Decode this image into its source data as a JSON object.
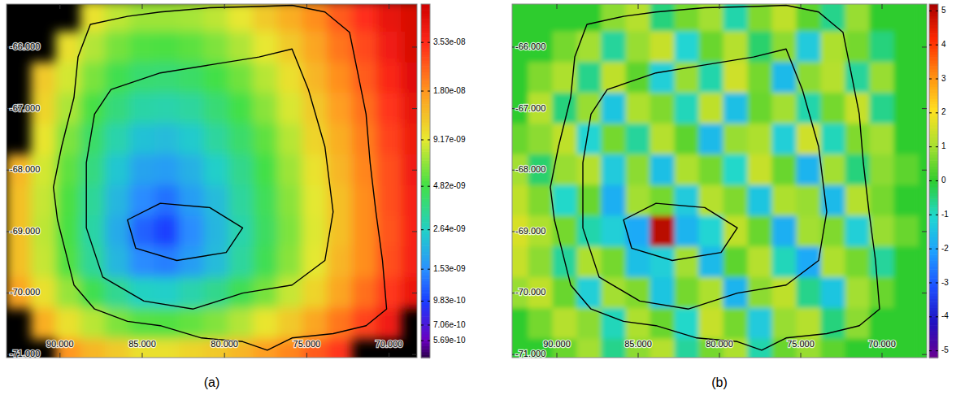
{
  "chart_data": [
    {
      "type": "heatmap",
      "title": "(a)",
      "x": [
        92.5,
        91,
        89.5,
        88,
        86.5,
        85,
        83.5,
        82,
        80.5,
        79,
        77.5,
        76,
        74.5,
        73,
        71.5,
        70,
        68.5
      ],
      "y": [
        -65.5,
        -66,
        -66.5,
        -67,
        -67.5,
        -68,
        -68.5,
        -69,
        -69.5,
        -70,
        -70.5,
        -71
      ],
      "values": [
        [
          null,
          null,
          null,
          9.8e-09,
          7.9e-09,
          7e-09,
          7e-09,
          7.2e-09,
          7.9e-09,
          9.4e-09,
          1.2e-08,
          1.5e-08,
          1.9e-08,
          2.6e-08,
          3.4e-08,
          4.6e-08,
          5.5e-08
        ],
        [
          null,
          null,
          1e-08,
          7.6e-09,
          6e-09,
          5.2e-09,
          5.1e-09,
          5.4e-09,
          6.2e-09,
          7.5e-09,
          9.4e-09,
          1.2e-08,
          1.6e-08,
          2.2e-08,
          2.9e-08,
          4.1e-08,
          5.5e-08
        ],
        [
          null,
          1.2e-08,
          8.6e-09,
          6.1e-09,
          4.7e-09,
          4e-09,
          3.9e-09,
          4.2e-09,
          4.9e-09,
          5.9e-09,
          7.7e-09,
          1e-08,
          1.4e-08,
          1.9e-08,
          2.6e-08,
          3.7e-08,
          5e-08
        ],
        [
          null,
          1.1e-08,
          7.4e-09,
          5e-09,
          3.8e-09,
          3.1e-09,
          3e-09,
          3.2e-09,
          3.9e-09,
          4.9e-09,
          6.5e-09,
          8.8e-09,
          1.2e-08,
          1.7e-08,
          2.3e-08,
          3.3e-08,
          4.6e-08
        ],
        [
          null,
          9.6e-09,
          6.2e-09,
          4.2e-09,
          3e-09,
          2.3e-09,
          2.2e-09,
          2.5e-09,
          3.2e-09,
          4.1e-09,
          5.5e-09,
          7.7e-09,
          1.1e-08,
          1.5e-08,
          2.1e-08,
          3e-08,
          4.2e-08
        ],
        [
          1.4e-08,
          8.6e-09,
          5.5e-09,
          3.7e-09,
          2.4e-09,
          1.8e-09,
          1.7e-09,
          2e-09,
          2.6e-09,
          3.5e-09,
          4.9e-09,
          7e-09,
          9.8e-09,
          1.4e-08,
          2e-08,
          2.8e-08,
          4.1e-08
        ],
        [
          1.3e-08,
          8.2e-09,
          5.1e-09,
          3.3e-09,
          2.1e-09,
          1.5e-09,
          1.3e-09,
          1.7e-09,
          2.2e-09,
          3.2e-09,
          4.5e-09,
          6.5e-09,
          9.2e-09,
          1.3e-08,
          1.9e-08,
          2.8e-08,
          3.9e-08
        ],
        [
          1.3e-08,
          7.9e-09,
          5e-09,
          3.1e-09,
          1.9e-09,
          1.2e-09,
          1e-09,
          1.5e-09,
          2.1e-09,
          3e-09,
          4.3e-09,
          6.2e-09,
          9e-09,
          1.3e-08,
          1.9e-08,
          2.7e-08,
          3.8e-08
        ],
        [
          1.3e-08,
          8.2e-09,
          5.2e-09,
          3.3e-09,
          2.1e-09,
          1.5e-09,
          1.4e-09,
          1.7e-09,
          2.2e-09,
          3.2e-09,
          4.6e-09,
          6.5e-09,
          9.2e-09,
          1.4e-08,
          1.9e-08,
          2.8e-08,
          3.9e-08
        ],
        [
          1.6e-08,
          1e-08,
          6.8e-09,
          4.7e-09,
          3.4e-09,
          2.7e-09,
          2.6e-09,
          3e-09,
          3.5e-09,
          4.6e-09,
          6e-09,
          8.2e-09,
          1.1e-08,
          1.6e-08,
          2.3e-08,
          3.2e-08,
          4.4e-08
        ],
        [
          null,
          1.5e-08,
          1e-08,
          7.8e-09,
          6.2e-09,
          5.3e-09,
          5.2e-09,
          5.6e-09,
          6.3e-09,
          7.6e-09,
          9.6e-09,
          1.2e-08,
          1.6e-08,
          2.2e-08,
          3e-08,
          4.1e-08,
          null
        ],
        [
          null,
          null,
          1.8e-08,
          1.4e-08,
          1.2e-08,
          1e-08,
          1e-08,
          1.1e-08,
          1.2e-08,
          1.4e-08,
          1.7e-08,
          2e-08,
          2.6e-08,
          3.3e-08,
          null,
          null,
          null
        ]
      ],
      "xlim": [
        93.25,
        68.3
      ],
      "ylim": [
        -71.05,
        -65.3
      ],
      "xticks": [
        {
          "value": 90,
          "label": "90.000"
        },
        {
          "value": 85,
          "label": "85.000"
        },
        {
          "value": 80,
          "label": "80.000"
        },
        {
          "value": 75,
          "label": "75.000"
        },
        {
          "value": 70,
          "label": "70.000"
        }
      ],
      "yticks": [
        {
          "value": -66,
          "label": "-66.000"
        },
        {
          "value": -67,
          "label": "-67.000"
        },
        {
          "value": -68,
          "label": "-68.000"
        },
        {
          "value": -69,
          "label": "-69.000"
        },
        {
          "value": -70,
          "label": "-70.000"
        },
        {
          "value": -71,
          "label": "-71.000"
        }
      ],
      "colorbar": {
        "range": [
          4.5e-10,
          6e-08
        ],
        "log": true,
        "ticks": [
          {
            "value": 3.53e-08,
            "label": "3.53e-08"
          },
          {
            "value": 1.8e-08,
            "label": "1.80e-08"
          },
          {
            "value": 9.17e-09,
            "label": "9.17e-09"
          },
          {
            "value": 4.82e-09,
            "label": "4.82e-09"
          },
          {
            "value": 2.64e-09,
            "label": "2.64e-09"
          },
          {
            "value": 1.53e-09,
            "label": "1.53e-09"
          },
          {
            "value": 9.83e-10,
            "label": "9.83e-10"
          },
          {
            "value": 7.06e-10,
            "label": "7.06e-10"
          },
          {
            "value": 5.69e-10,
            "label": "5.69e-10"
          }
        ]
      },
      "contours": [
        [
          [
            88.15,
            -65.63
          ],
          [
            85.9,
            -65.5
          ],
          [
            83.9,
            -65.43
          ],
          [
            80.9,
            -65.36
          ],
          [
            77.9,
            -65.34
          ],
          [
            75.9,
            -65.32
          ],
          [
            73.9,
            -65.43
          ],
          [
            72.4,
            -65.76
          ],
          [
            71.9,
            -66.42
          ],
          [
            71.4,
            -67.09
          ],
          [
            71.15,
            -67.88
          ],
          [
            70.8,
            -68.68
          ],
          [
            70.4,
            -69.47
          ],
          [
            70.15,
            -70.26
          ],
          [
            71.4,
            -70.53
          ],
          [
            73.4,
            -70.66
          ],
          [
            75.9,
            -70.73
          ],
          [
            77.4,
            -70.93
          ],
          [
            78.9,
            -70.79
          ],
          [
            81.4,
            -70.73
          ],
          [
            83.9,
            -70.53
          ],
          [
            85.9,
            -70.46
          ],
          [
            87.9,
            -70.26
          ],
          [
            89.15,
            -69.87
          ],
          [
            89.65,
            -69.34
          ],
          [
            90.15,
            -68.81
          ],
          [
            90.4,
            -68.28
          ],
          [
            89.9,
            -67.62
          ],
          [
            89.15,
            -66.82
          ],
          [
            88.9,
            -66.16
          ]
        ],
        [
          [
            86.9,
            -66.69
          ],
          [
            83.9,
            -66.42
          ],
          [
            80.9,
            -66.29
          ],
          [
            77.9,
            -66.16
          ],
          [
            75.9,
            -66.03
          ],
          [
            74.9,
            -66.69
          ],
          [
            73.9,
            -67.62
          ],
          [
            73.4,
            -68.68
          ],
          [
            73.9,
            -69.47
          ],
          [
            75.9,
            -69.87
          ],
          [
            78.9,
            -70.0
          ],
          [
            81.9,
            -70.26
          ],
          [
            84.9,
            -70.13
          ],
          [
            87.4,
            -69.74
          ],
          [
            88.4,
            -68.94
          ],
          [
            88.4,
            -67.88
          ],
          [
            87.9,
            -67.09
          ]
        ],
        [
          [
            85.9,
            -68.81
          ],
          [
            83.9,
            -68.54
          ],
          [
            80.9,
            -68.61
          ],
          [
            78.9,
            -68.94
          ],
          [
            79.9,
            -69.34
          ],
          [
            82.9,
            -69.47
          ],
          [
            85.4,
            -69.27
          ]
        ]
      ]
    },
    {
      "type": "heatmap",
      "title": "(b)",
      "x": [
        92.5,
        91,
        89.5,
        88,
        86.5,
        85,
        83.5,
        82,
        80.5,
        79,
        77.5,
        76,
        74.5,
        73,
        71.5,
        70,
        68.5
      ],
      "y": [
        -65.5,
        -66,
        -66.5,
        -67,
        -67.5,
        -68,
        -68.5,
        -69,
        -69.5,
        -70,
        -70.5,
        -71
      ],
      "values": [
        [
          0,
          0,
          0,
          0,
          0.8,
          1.2,
          -0.5,
          0.6,
          1.0,
          -0.8,
          0.7,
          1.3,
          0.4,
          -0.6,
          0.9,
          0,
          0
        ],
        [
          0,
          0,
          0.6,
          1.0,
          -0.7,
          0.9,
          1.4,
          -1.1,
          0.5,
          1.2,
          -0.4,
          0.8,
          -1.3,
          1.1,
          0.6,
          -0.5,
          0
        ],
        [
          0,
          0.7,
          1.1,
          -0.6,
          1.3,
          0.4,
          -1.2,
          0.9,
          -0.8,
          1.5,
          0.6,
          -1.6,
          0.8,
          1.2,
          -0.7,
          0.9,
          0
        ],
        [
          0,
          1.2,
          -0.5,
          0.9,
          -1.4,
          1.1,
          0.7,
          -0.9,
          1.3,
          -1.5,
          0.5,
          1.0,
          -0.8,
          0.6,
          1.4,
          -0.6,
          0
        ],
        [
          0.5,
          0.8,
          1.3,
          -1.1,
          0.6,
          -0.7,
          1.2,
          0.4,
          -1.6,
          0.9,
          1.1,
          -1.2,
          1.5,
          -0.9,
          0.7,
          1.0,
          0
        ],
        [
          1.0,
          -0.4,
          0.9,
          1.2,
          -1.3,
          0.8,
          -1.5,
          1.1,
          0.6,
          -1.0,
          1.4,
          0.5,
          -1.7,
          1.0,
          -0.5,
          0.8,
          0.4
        ],
        [
          1.3,
          0.7,
          -1.0,
          0.5,
          -1.8,
          1.0,
          0.6,
          -1.3,
          1.2,
          0.7,
          -1.4,
          1.1,
          0.9,
          -1.6,
          1.2,
          0.6,
          0
        ],
        [
          1.6,
          1.1,
          0.6,
          -0.8,
          -1.2,
          -1.9,
          5,
          -1.7,
          -1.1,
          1.3,
          0.5,
          -1.8,
          1.0,
          0.7,
          -1.2,
          0.9,
          0.5
        ],
        [
          1.4,
          0.8,
          -0.7,
          1.1,
          0.6,
          -1.5,
          -1.2,
          1.0,
          -1.6,
          0.4,
          1.2,
          -0.9,
          -1.9,
          1.1,
          0.6,
          -0.7,
          0
        ],
        [
          0.9,
          1.3,
          0.5,
          -1.2,
          1.0,
          0.7,
          -1.4,
          0.6,
          1.1,
          -1.7,
          0.8,
          1.3,
          -0.6,
          -1.4,
          1.0,
          0.5,
          0
        ],
        [
          0,
          0.6,
          1.2,
          0.8,
          -0.9,
          1.1,
          0.5,
          -1.0,
          1.4,
          0.6,
          -1.3,
          0.9,
          1.2,
          -0.5,
          0.8,
          0,
          0
        ],
        [
          0,
          0,
          0.5,
          1.0,
          -0.6,
          0.8,
          1.2,
          -0.7,
          0.6,
          1.1,
          -0.8,
          0.5,
          0.9,
          0.4,
          0,
          0,
          0
        ]
      ],
      "xlim": [
        92.75,
        67.25
      ],
      "ylim": [
        -71.05,
        -65.3
      ],
      "xticks": [
        {
          "value": 90,
          "label": "90.000"
        },
        {
          "value": 85,
          "label": "85.000"
        },
        {
          "value": 80,
          "label": "80.000"
        },
        {
          "value": 75,
          "label": "75.000"
        },
        {
          "value": 70,
          "label": "70.000"
        }
      ],
      "yticks": [
        {
          "value": -66,
          "label": "-66.000"
        },
        {
          "value": -67,
          "label": "-67.000"
        },
        {
          "value": -68,
          "label": "-68.000"
        },
        {
          "value": -69,
          "label": "-69.000"
        },
        {
          "value": -70,
          "label": "-70.000"
        },
        {
          "value": -71,
          "label": "-71.000"
        }
      ],
      "colorbar": {
        "range": [
          -5.2,
          5.2
        ],
        "log": false,
        "ticks": [
          5,
          4,
          3,
          2,
          1,
          0,
          -1,
          -2,
          -3,
          -4,
          -5
        ]
      },
      "contours": [
        [
          [
            88.15,
            -65.63
          ],
          [
            85.9,
            -65.5
          ],
          [
            83.9,
            -65.43
          ],
          [
            80.9,
            -65.36
          ],
          [
            77.9,
            -65.34
          ],
          [
            75.9,
            -65.32
          ],
          [
            73.9,
            -65.43
          ],
          [
            72.4,
            -65.76
          ],
          [
            71.9,
            -66.42
          ],
          [
            71.4,
            -67.09
          ],
          [
            71.15,
            -67.88
          ],
          [
            70.8,
            -68.68
          ],
          [
            70.4,
            -69.47
          ],
          [
            70.15,
            -70.26
          ],
          [
            71.4,
            -70.53
          ],
          [
            73.4,
            -70.66
          ],
          [
            75.9,
            -70.73
          ],
          [
            77.4,
            -70.93
          ],
          [
            78.9,
            -70.79
          ],
          [
            81.4,
            -70.73
          ],
          [
            83.9,
            -70.53
          ],
          [
            85.9,
            -70.46
          ],
          [
            87.9,
            -70.26
          ],
          [
            89.15,
            -69.87
          ],
          [
            89.65,
            -69.34
          ],
          [
            90.15,
            -68.81
          ],
          [
            90.4,
            -68.28
          ],
          [
            89.9,
            -67.62
          ],
          [
            89.15,
            -66.82
          ],
          [
            88.9,
            -66.16
          ]
        ],
        [
          [
            86.9,
            -66.69
          ],
          [
            83.9,
            -66.42
          ],
          [
            80.9,
            -66.29
          ],
          [
            77.9,
            -66.16
          ],
          [
            75.9,
            -66.03
          ],
          [
            74.9,
            -66.69
          ],
          [
            73.9,
            -67.62
          ],
          [
            73.4,
            -68.68
          ],
          [
            73.9,
            -69.47
          ],
          [
            75.9,
            -69.87
          ],
          [
            78.9,
            -70.0
          ],
          [
            81.9,
            -70.26
          ],
          [
            84.9,
            -70.13
          ],
          [
            87.4,
            -69.74
          ],
          [
            88.4,
            -68.94
          ],
          [
            88.4,
            -67.88
          ],
          [
            87.9,
            -67.09
          ]
        ],
        [
          [
            85.9,
            -68.81
          ],
          [
            83.9,
            -68.54
          ],
          [
            80.9,
            -68.61
          ],
          [
            78.9,
            -68.94
          ],
          [
            79.9,
            -69.34
          ],
          [
            82.9,
            -69.47
          ],
          [
            85.4,
            -69.27
          ]
        ]
      ]
    }
  ]
}
